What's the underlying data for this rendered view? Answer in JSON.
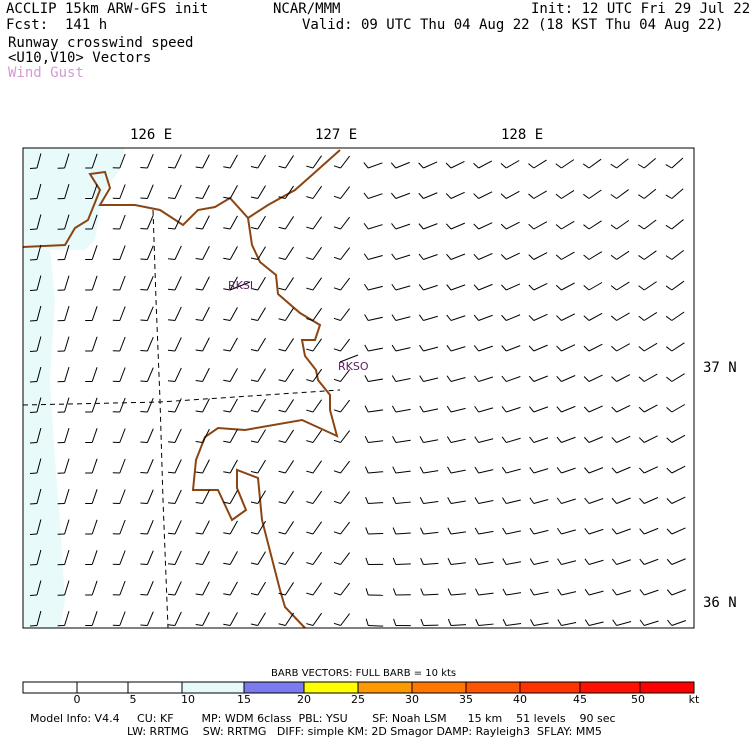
{
  "header": {
    "model": "ACCLIP 15km ARW-GFS init",
    "fcst": "Fcst:  141 h",
    "center": "NCAR/MMM",
    "init": "Init: 12 UTC Fri 29 Jul 22",
    "valid": "Valid: 09 UTC Thu 04 Aug 22 (18 KST Thu 04 Aug 22)",
    "field1": "Runway crosswind speed",
    "field2": "<U10,V10> Vectors",
    "field3": "Wind Gust",
    "gust_color": "#d49ad4"
  },
  "map": {
    "lon_labels": [
      "126 E",
      "127 E",
      "128 E"
    ],
    "lat_labels": [
      "37 N",
      "36 N"
    ],
    "stations": [
      "RKSI",
      "RKSO"
    ],
    "coast_color": "#8b4513",
    "shade_color": "#e8fafa",
    "barb_color": "#000000"
  },
  "colorbar": {
    "title": "BARB VECTORS:  FULL BARB = 10 kts",
    "ticks": [
      "0",
      "5",
      "10",
      "15",
      "20",
      "25",
      "30",
      "35",
      "40",
      "45",
      "50",
      "kt"
    ],
    "colors": [
      "#ffffff",
      "#ffffff",
      "#ffffff",
      "#e6fafa",
      "#7b7bef",
      "#ffff00",
      "#ff9900",
      "#ff7700",
      "#ff5500",
      "#ff3300",
      "#ff0000",
      "#ee0000"
    ]
  },
  "footer": {
    "line1": "Model Info: V4.4     CU: KF        MP: WDM 6class  PBL: YSU       SF: Noah LSM      15 km    51 levels    90 sec",
    "line2": "LW: RRTMG    SW: RRTMG   DIFF: simple KM: 2D Smagor DAMP: Rayleigh3  SFLAY: MM5"
  }
}
